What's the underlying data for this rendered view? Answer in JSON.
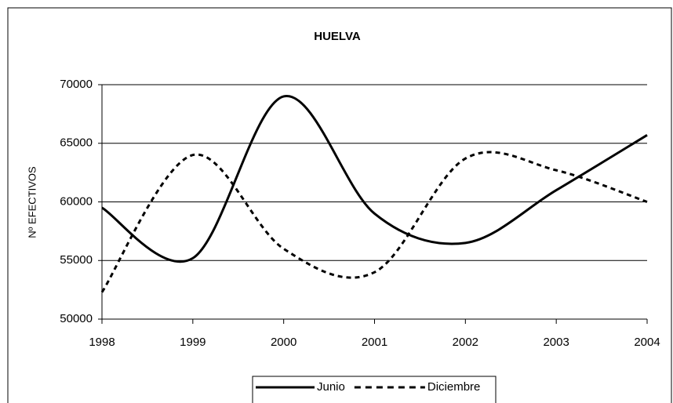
{
  "chart_data": {
    "type": "line",
    "title": "HUELVA",
    "y_label": "Nº EFECTIVOS",
    "x": [
      1998,
      1999,
      2000,
      2001,
      2002,
      2003,
      2004
    ],
    "series": [
      {
        "name": "Junio",
        "color": "#000000",
        "dash": "solid",
        "values": [
          59500,
          55200,
          69000,
          59000,
          56500,
          61000,
          65700
        ]
      },
      {
        "name": "Diciembre",
        "color": "#000000",
        "dash": "dashed",
        "values": [
          52300,
          64000,
          56000,
          54000,
          63700,
          62700,
          60000
        ]
      }
    ],
    "xlim": [
      1998,
      2004
    ],
    "xticks": [
      1998,
      1999,
      2000,
      2001,
      2002,
      2003,
      2004
    ],
    "ylim": [
      50000,
      70000
    ],
    "yticks": [
      50000,
      55000,
      60000,
      65000,
      70000
    ],
    "grid": true,
    "legend": "bottom"
  }
}
